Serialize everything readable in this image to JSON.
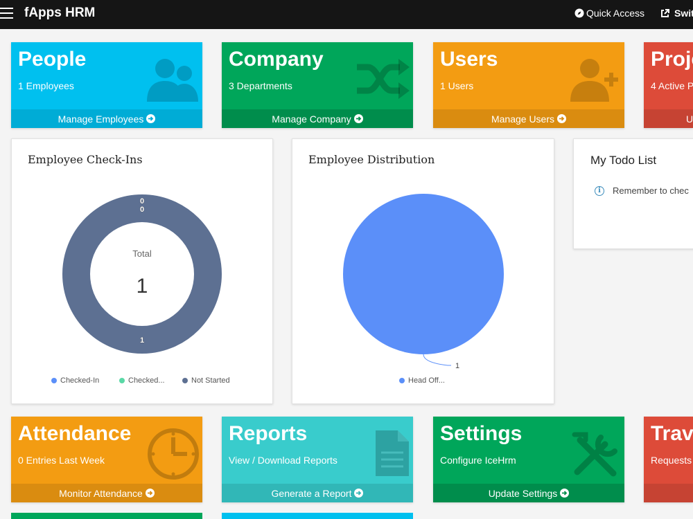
{
  "navbar": {
    "brand": "fApps HRM",
    "quick_access": "Quick Access",
    "switch_label": "Swit"
  },
  "tiles": {
    "people": {
      "title": "People",
      "subtitle": "1 Employees",
      "footer": "Manage Employees",
      "color": "#00c0ef",
      "footer_color": "#00acd6"
    },
    "company": {
      "title": "Company",
      "subtitle": "3 Departments",
      "footer": "Manage Company",
      "color": "#00a65a",
      "footer_color": "#008d4c"
    },
    "users": {
      "title": "Users",
      "subtitle": "1 Users",
      "footer": "Manage Users",
      "color": "#f39c12",
      "footer_color": "#da8c10"
    },
    "projects": {
      "title": "Proje",
      "subtitle": "4 Active P",
      "footer": "U",
      "color": "#dd4b39",
      "footer_color": "#c64333"
    },
    "attendance": {
      "title": "Attendance",
      "subtitle": "0 Entries Last Week",
      "footer": "Monitor Attendance",
      "color": "#f39c12",
      "footer_color": "#da8c10"
    },
    "reports": {
      "title": "Reports",
      "subtitle": "View / Download Reports",
      "footer": "Generate a Report",
      "color": "#39cccc",
      "footer_color": "#31b7b7"
    },
    "settings": {
      "title": "Settings",
      "subtitle": "Configure IceHrm",
      "footer": "Update Settings",
      "color": "#00a65a",
      "footer_color": "#008d4c"
    },
    "travel": {
      "title": "Trave",
      "subtitle": "Requests",
      "footer": "",
      "color": "#dd4b39",
      "footer_color": "#c64333"
    }
  },
  "checkins": {
    "title": "Employee Check-Ins",
    "center_label": "Total",
    "total": "1",
    "chart_data": {
      "type": "pie",
      "categories": [
        "Checked-In",
        "Checked...",
        "Not Started"
      ],
      "values": [
        0,
        0,
        1
      ],
      "data_labels": [
        "0",
        "0",
        "1"
      ],
      "colors": [
        "#5b8ff9",
        "#5ad8a6",
        "#5d7092"
      ],
      "legend_position": "bottom"
    }
  },
  "distribution": {
    "title": "Employee Distribution",
    "chart_data": {
      "type": "pie",
      "categories": [
        "Head Off..."
      ],
      "values": [
        1
      ],
      "data_labels": [
        "1"
      ],
      "colors": [
        "#5b8ff9"
      ],
      "legend_position": "bottom"
    }
  },
  "todo": {
    "title": "My Todo List",
    "items": [
      {
        "text": "Remember to chec"
      }
    ]
  }
}
